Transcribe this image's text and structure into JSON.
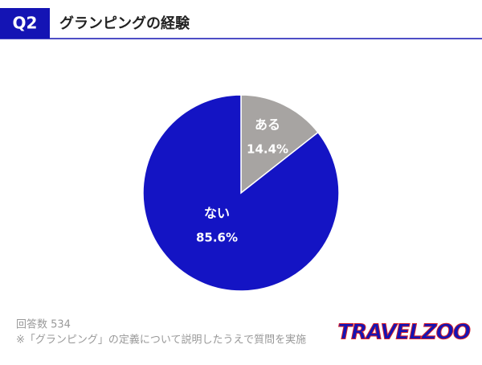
{
  "header": {
    "badge": "Q2"
  },
  "chart_data": {
    "type": "pie",
    "title": "グランピングの経験",
    "categories": [
      "ある",
      "ない"
    ],
    "values": [
      14.4,
      85.6
    ],
    "value_labels": [
      "14.4%",
      "85.6%"
    ],
    "colors": [
      "#a7a4a2",
      "#1414c4"
    ],
    "start_angle": 0,
    "direction": "clockwise"
  },
  "footer": {
    "notes": [
      "回答数 534",
      "※「グランピング」の定義について説明したうえで質問を実施"
    ],
    "logo": "TRAVELZOO"
  }
}
